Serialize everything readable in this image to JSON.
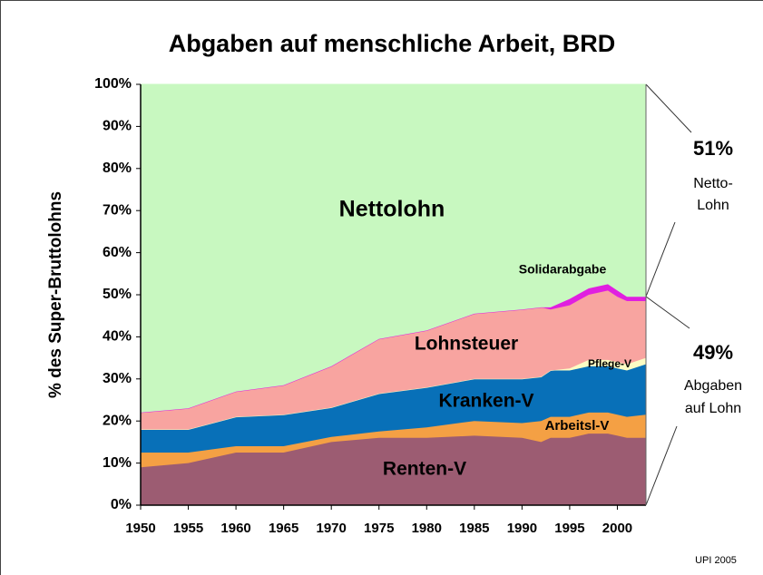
{
  "chart_data": {
    "type": "stacked_area",
    "title": "Abgaben auf menschliche Arbeit, BRD",
    "y_label": "% des Super-Bruttolohns",
    "x": [
      1950,
      1955,
      1960,
      1965,
      1970,
      1975,
      1980,
      1985,
      1990,
      1992,
      1993,
      1995,
      1997,
      1999,
      2000,
      2001,
      2003
    ],
    "series": [
      {
        "name": "Renten-V",
        "color": "#9c5c72",
        "values": [
          9,
          10,
          12.5,
          12.5,
          15,
          16,
          16,
          16.5,
          16,
          15,
          16,
          16,
          17,
          17,
          16.5,
          16,
          16
        ]
      },
      {
        "name": "Arbeitsl-V",
        "color": "#f4a044",
        "values": [
          3.5,
          2.5,
          1.5,
          1.5,
          1.2,
          1.5,
          2.5,
          3.5,
          3.5,
          5,
          5,
          5,
          5,
          5,
          5,
          5,
          5.5
        ]
      },
      {
        "name": "Kranken-V",
        "color": "#0870b8",
        "values": [
          5.5,
          5.5,
          7,
          7.5,
          7,
          9,
          9.5,
          10,
          10.5,
          10.5,
          11,
          11,
          11,
          11,
          11,
          11,
          12
        ]
      },
      {
        "name": "Pflege-V",
        "color": "#fcfcc4",
        "values": [
          0,
          0,
          0,
          0,
          0,
          0,
          0,
          0,
          0,
          0,
          0,
          0.5,
          1.5,
          1.5,
          1.5,
          1.5,
          1.5
        ]
      },
      {
        "name": "Lohnsteuer",
        "color": "#f8a4a0",
        "values": [
          4,
          5,
          6,
          7,
          9.8,
          13,
          13.5,
          15.5,
          16.5,
          16.5,
          14.5,
          15,
          15.5,
          16.5,
          15.5,
          15,
          13.5
        ]
      },
      {
        "name": "Solidarabgabe",
        "color": "#e020e0",
        "values": [
          0,
          0,
          0,
          0,
          0,
          0,
          0,
          0,
          0,
          0,
          0.5,
          1.5,
          1.5,
          1.5,
          1.5,
          1,
          1
        ]
      },
      {
        "name": "Nettolohn",
        "color": "#c8f8c0",
        "values": [
          78,
          77,
          73,
          71.5,
          67,
          60.5,
          58.5,
          54.5,
          53.5,
          53,
          53,
          51,
          48.5,
          47.5,
          49,
          50.5,
          50.5
        ]
      }
    ],
    "xlim": [
      1950,
      2003
    ],
    "xticks": [
      1950,
      1955,
      1960,
      1965,
      1970,
      1975,
      1980,
      1985,
      1990,
      1995,
      2000
    ],
    "ylim": [
      0,
      100
    ],
    "yticks": [
      {
        "value": 0,
        "label": "0%"
      },
      {
        "value": 10,
        "label": "10%"
      },
      {
        "value": 20,
        "label": "20%"
      },
      {
        "value": 30,
        "label": "30%"
      },
      {
        "value": 40,
        "label": "40%"
      },
      {
        "value": 50,
        "label": "50%"
      },
      {
        "value": 60,
        "label": "60%"
      },
      {
        "value": 70,
        "label": "70%"
      },
      {
        "value": 80,
        "label": "80%"
      },
      {
        "value": 90,
        "label": "90%"
      },
      {
        "value": 100,
        "label": "100%"
      }
    ],
    "annotations": {
      "netto_pct": "51%",
      "netto_1": "Netto-",
      "netto_2": "Lohn",
      "abgaben_pct": "49%",
      "abgaben_1": "Abgaben",
      "abgaben_2": "auf Lohn",
      "source": "UPI 2005"
    }
  }
}
